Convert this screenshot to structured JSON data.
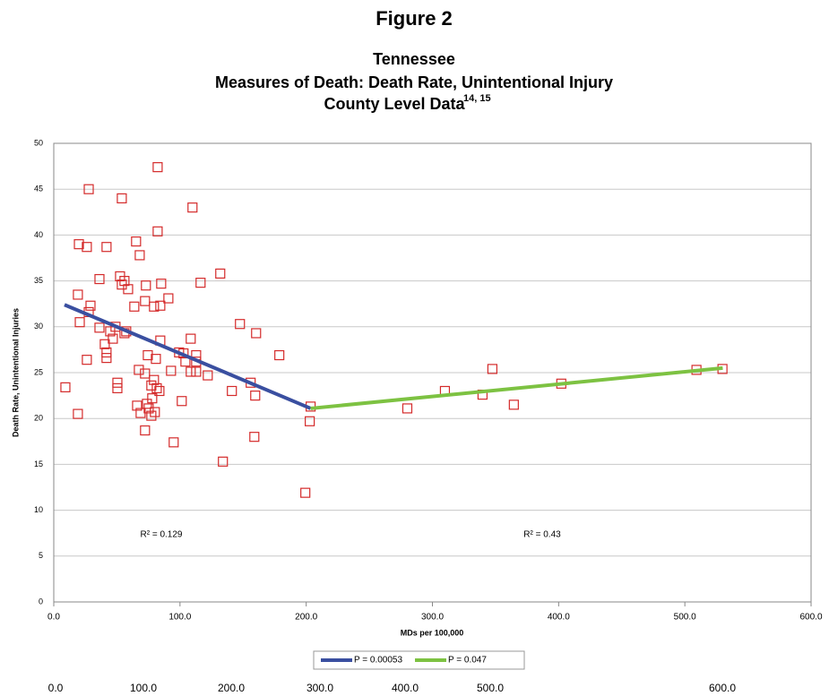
{
  "figure_label": "Figure 2",
  "chart_data": {
    "type": "scatter",
    "title": [
      "Tennessee",
      "Measures of Death: Death Rate, Unintentional Injury",
      "County Level Data"
    ],
    "title_superscript": "14, 15",
    "x_label": "MDs per 100,000",
    "y_label": "Death Rate, Unintentional Injuries",
    "xlim": [
      0,
      600
    ],
    "ylim": [
      0,
      50
    ],
    "xticks": [
      {
        "value": 0,
        "label": "0.0"
      },
      {
        "value": 100,
        "label": "100.0"
      },
      {
        "value": 200,
        "label": "200.0"
      },
      {
        "value": 300,
        "label": "300.0"
      },
      {
        "value": 400,
        "label": "400.0"
      },
      {
        "value": 500,
        "label": "500.0"
      },
      {
        "value": 600,
        "label": "600.0"
      }
    ],
    "yticks": [
      0,
      5,
      10,
      15,
      20,
      25,
      30,
      35,
      40,
      45,
      50
    ],
    "grid": true,
    "marker_color": "#d42a2a",
    "x": [
      9.2,
      19.9,
      19.1,
      20.6,
      19.1,
      27.7,
      26.2,
      29.1,
      27.7,
      26.2,
      36.2,
      36.2,
      41.8,
      40.4,
      41.8,
      41.8,
      44.7,
      46.8,
      48.9,
      50.4,
      50.4,
      53.9,
      52.5,
      53.9,
      56.0,
      58.9,
      56.0,
      57.4,
      65.2,
      68.1,
      63.8,
      73.0,
      72.3,
      67.4,
      72.3,
      74.5,
      66.0,
      68.8,
      73.8,
      75.2,
      77.3,
      79.4,
      78.0,
      77.3,
      80.1,
      72.3,
      82.3,
      82.3,
      85.1,
      79.4,
      84.4,
      84.4,
      80.9,
      81.6,
      83.7,
      95.0,
      90.8,
      92.9,
      99.3,
      102.8,
      104.3,
      101.4,
      109.9,
      108.5,
      108.5,
      112.8,
      112.8,
      112.8,
      116.3,
      122.0,
      131.9,
      134.0,
      141.1,
      147.5,
      156.0,
      160.3,
      159.6,
      158.9,
      178.7,
      199.3,
      203.5,
      202.8,
      280.1,
      309.9,
      339.7,
      347.5,
      364.5,
      402.1,
      509.2,
      529.8
    ],
    "values": [
      23.4,
      39.0,
      33.5,
      30.5,
      20.5,
      45.0,
      38.7,
      32.3,
      31.6,
      26.4,
      35.2,
      29.9,
      38.7,
      28.1,
      27.2,
      26.6,
      29.5,
      28.7,
      30.0,
      23.9,
      23.3,
      44.0,
      35.5,
      34.6,
      35.0,
      34.1,
      29.3,
      29.5,
      39.3,
      37.8,
      32.2,
      34.5,
      32.8,
      25.3,
      24.9,
      26.9,
      21.4,
      20.6,
      21.6,
      21.1,
      23.6,
      24.2,
      22.2,
      20.3,
      20.7,
      18.7,
      47.4,
      40.4,
      34.7,
      32.2,
      32.3,
      28.5,
      26.5,
      23.3,
      23.0,
      17.4,
      33.1,
      25.2,
      27.2,
      27.1,
      26.2,
      21.9,
      43.0,
      28.7,
      25.1,
      26.9,
      26.2,
      25.1,
      34.8,
      24.7,
      35.8,
      15.3,
      23.0,
      30.3,
      23.9,
      29.3,
      22.5,
      18.0,
      26.9,
      11.9,
      21.3,
      19.7,
      21.1,
      23.0,
      22.6,
      25.4,
      21.5,
      23.8,
      25.3,
      25.4
    ],
    "trend_lines": [
      {
        "name": "P = 0.00053",
        "color": "#3a4fa0",
        "x": [
          8.5,
          203.5
        ],
        "values": [
          32.4,
          21.1
        ]
      },
      {
        "name": "P = 0.047",
        "color": "#7dc242",
        "x": [
          203.5,
          530
        ],
        "values": [
          21.1,
          25.5
        ]
      }
    ],
    "annotations": [
      "R² = 0.129",
      "R² = 0.43"
    ],
    "footer_labels": [
      "0.0",
      "100.0",
      "200.0",
      "300.0",
      "400.0",
      "500.0",
      "600.0"
    ]
  }
}
